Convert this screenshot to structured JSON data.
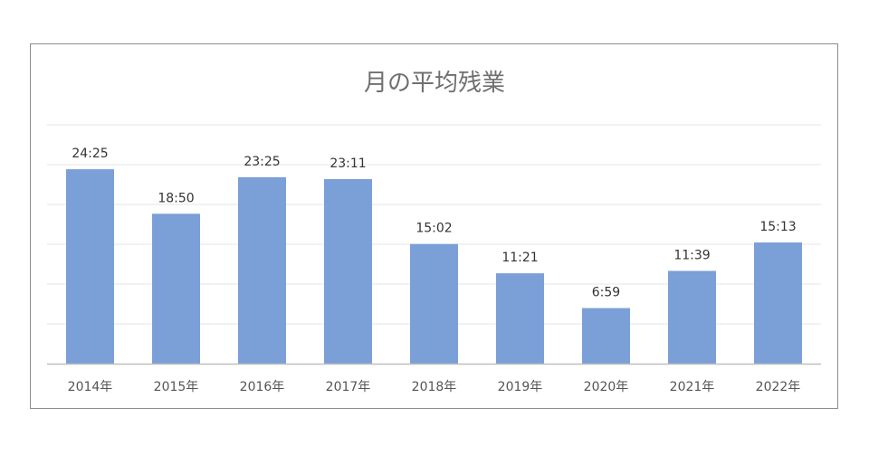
{
  "chart_data": {
    "type": "bar",
    "title": "月の平均残業",
    "categories": [
      "2014年",
      "2015年",
      "2016年",
      "2017年",
      "2018年",
      "2019年",
      "2020年",
      "2021年",
      "2022年"
    ],
    "values": [
      24.42,
      18.83,
      23.42,
      23.18,
      15.03,
      11.35,
      6.98,
      11.65,
      15.22
    ],
    "value_labels": [
      "24:25",
      "18:50",
      "23:25",
      "23:11",
      "15:02",
      "11:21",
      "6:59",
      "11:39",
      "15:13"
    ],
    "ylim": [
      0,
      30
    ],
    "grid": true,
    "legend": "none",
    "bar_color": "#7b9fd7",
    "grid_color": "#e6e6e6",
    "axis_color": "#bfbfbf"
  }
}
